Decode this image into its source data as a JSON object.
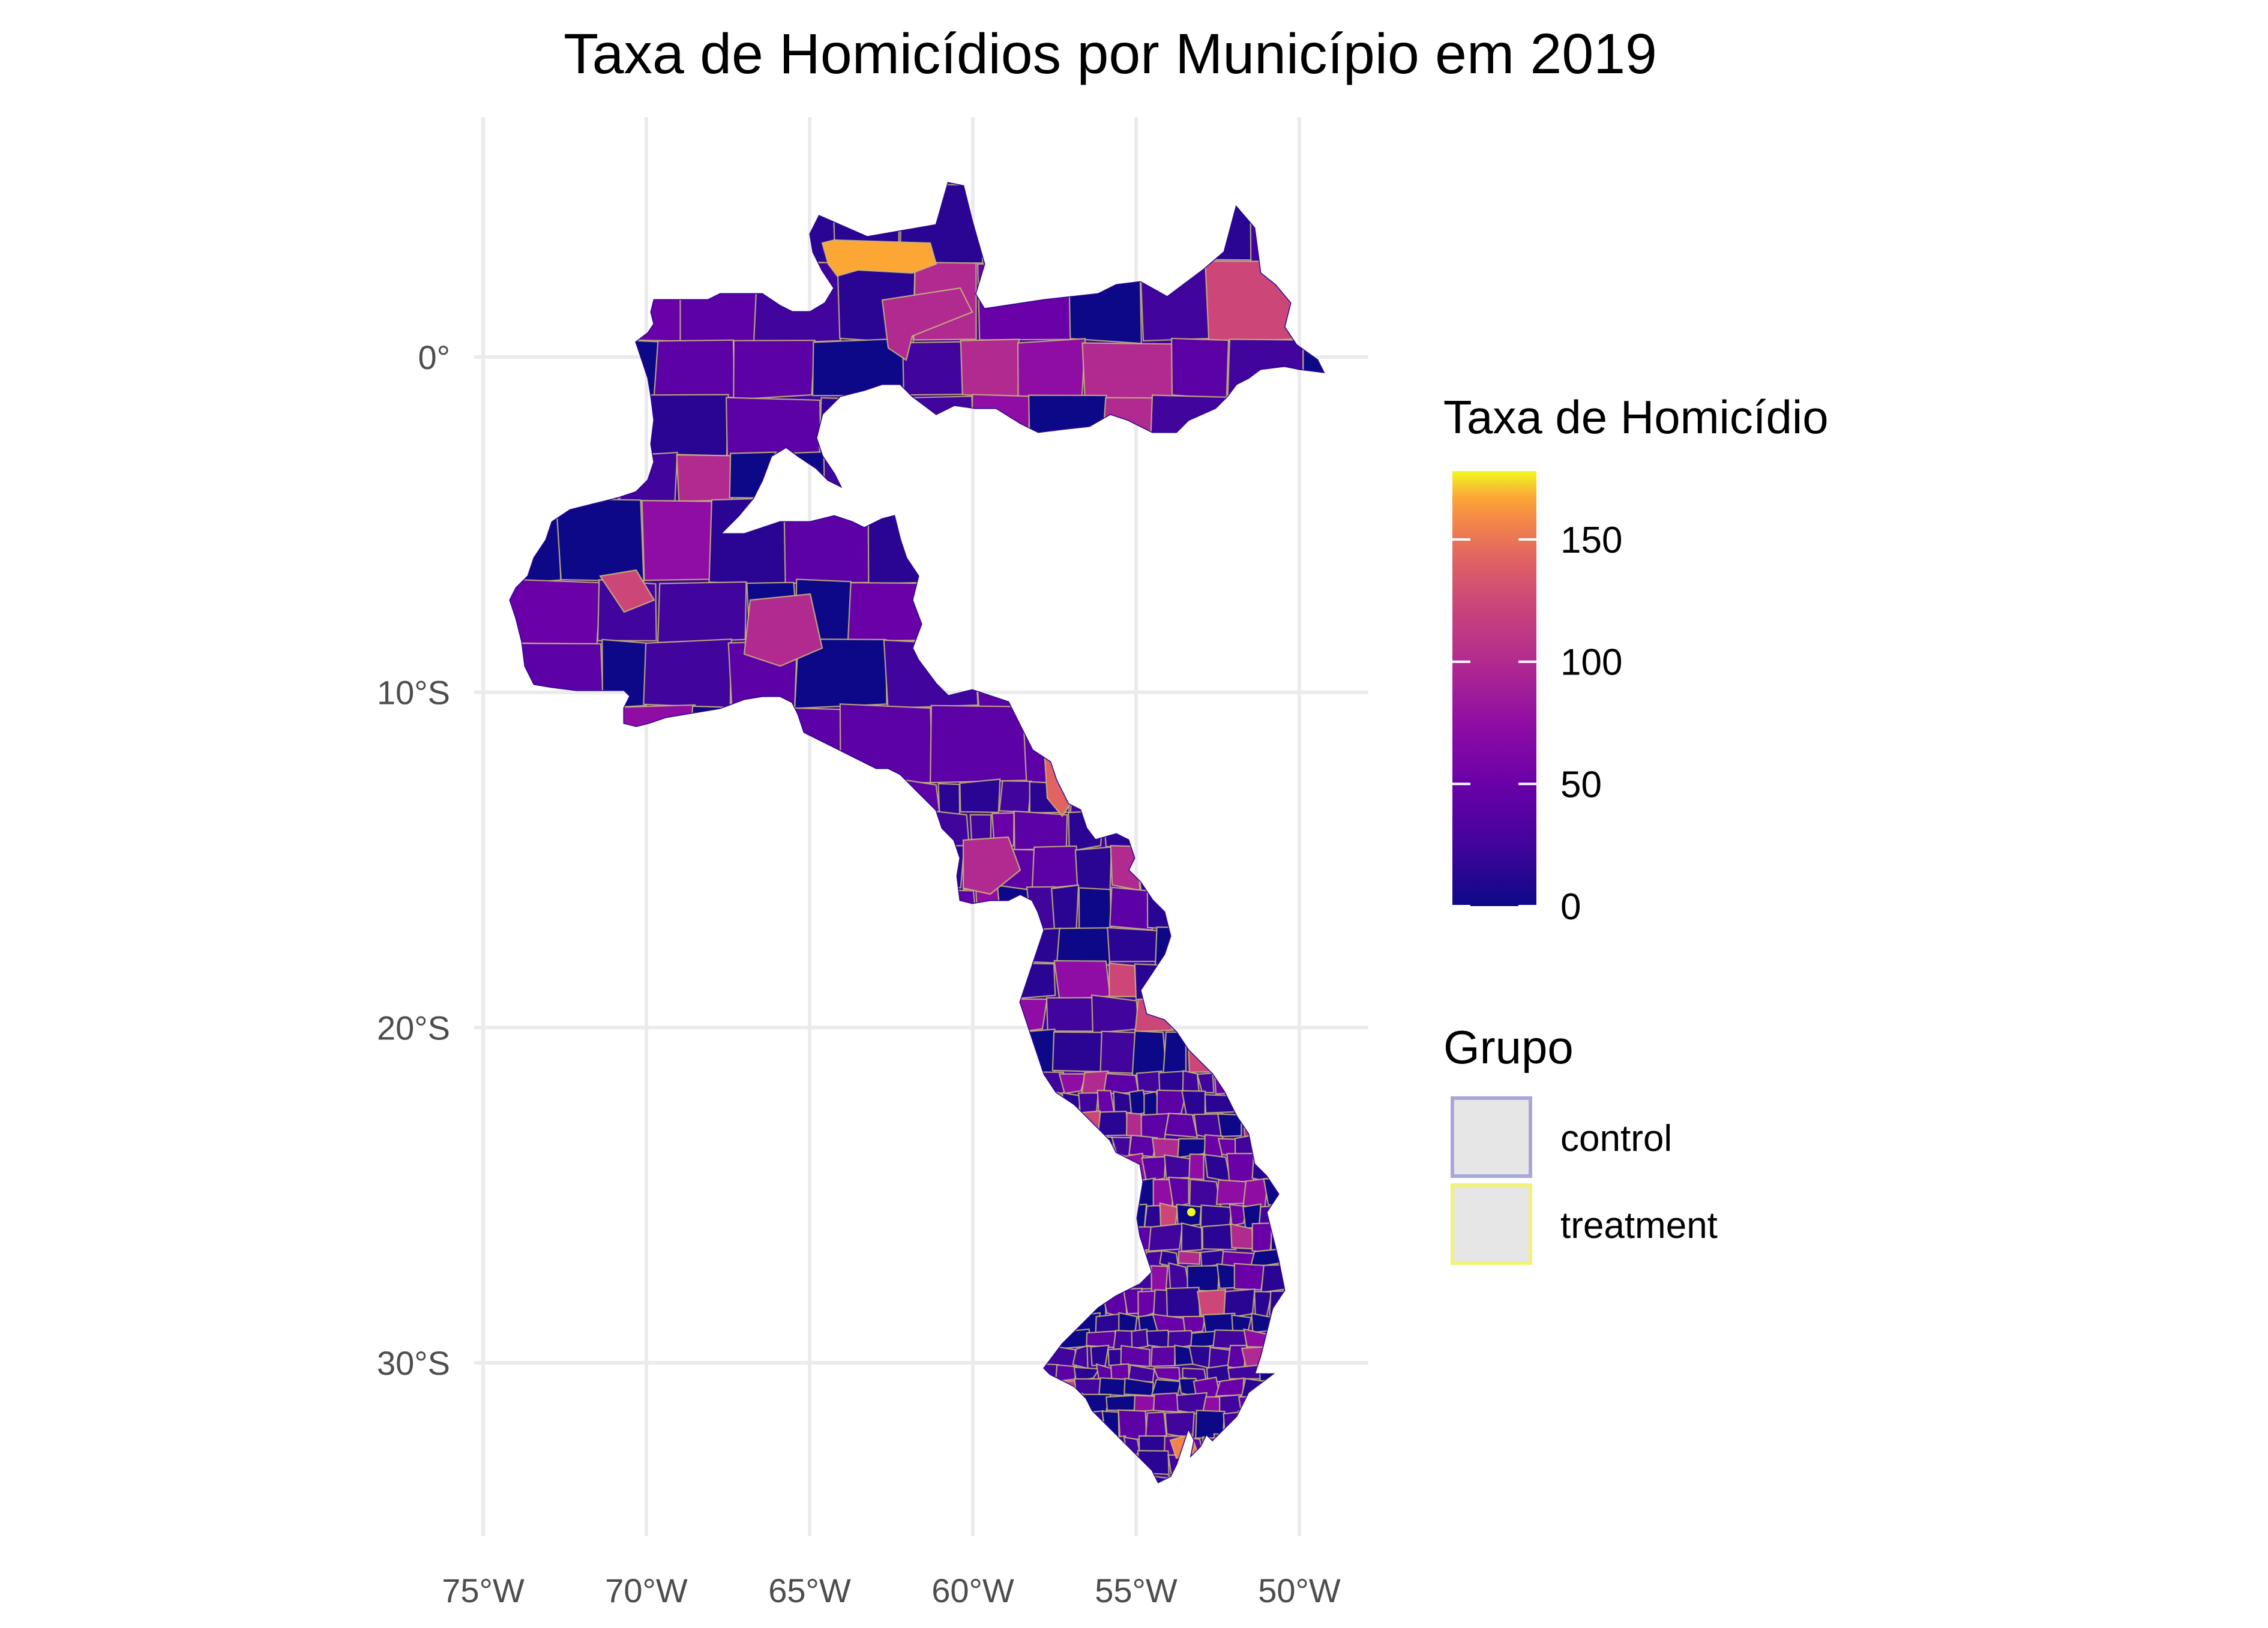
{
  "title": "Taxa de Homicídios por Município em 2019",
  "map": {
    "projection": "lon/lat",
    "x_range": [
      -75,
      -50
    ],
    "y_range": [
      -33,
      5
    ],
    "x_axis": {
      "ticks": [
        -75,
        -70,
        -65,
        -60,
        -55,
        -50
      ],
      "labels": [
        "75°W",
        "70°W",
        "65°W",
        "60°W",
        "55°W",
        "50°W"
      ]
    },
    "y_axis": {
      "ticks": [
        0,
        -10,
        -20,
        -30
      ],
      "labels": [
        "0°",
        "10°S",
        "20°S",
        "30°S"
      ]
    },
    "grid": true,
    "colormap": "plasma",
    "fill_colors_sample": [
      "#0d0887",
      "#2a0593",
      "#41049d",
      "#5c01a6",
      "#6a00a8",
      "#8f0da4",
      "#b12a90",
      "#cc4778",
      "#e16462",
      "#f2844b",
      "#fca636",
      "#f0f921"
    ]
  },
  "legend_fill": {
    "title": "Taxa de Homicídio",
    "min": 0,
    "max": 178,
    "ticks": [
      0,
      50,
      100,
      150
    ],
    "tick_labels": [
      "0",
      "50",
      "100",
      "150"
    ]
  },
  "legend_group": {
    "title": "Grupo",
    "items": [
      {
        "label": "control",
        "border": "#a9a7d8"
      },
      {
        "label": "treatment",
        "border": "#f0f27a"
      }
    ]
  }
}
